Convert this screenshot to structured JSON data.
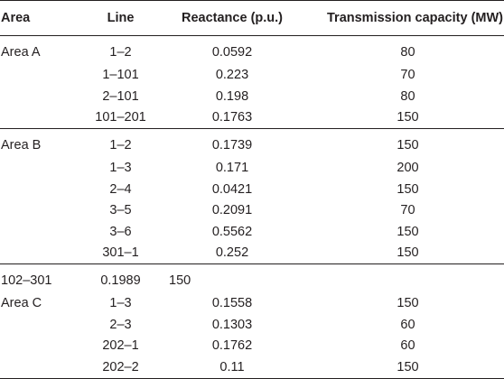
{
  "headers": {
    "area": "Area",
    "line": "Line",
    "reactance": "Reactance (p.u.)",
    "capacity": "Transmission capacity (MW)"
  },
  "rows": [
    {
      "area": "Area A",
      "line": "1–2",
      "reactance": "0.0592",
      "capacity": "80"
    },
    {
      "area": "",
      "line": "1–101",
      "reactance": "0.223",
      "capacity": "70"
    },
    {
      "area": "",
      "line": "2–101",
      "reactance": "0.198",
      "capacity": "80"
    },
    {
      "area": "",
      "line": "101–201",
      "reactance": "0.1763",
      "capacity": "150"
    },
    {
      "area": "Area B",
      "line": "1–2",
      "reactance": "0.1739",
      "capacity": "150"
    },
    {
      "area": "",
      "line": "1–3",
      "reactance": "0.171",
      "capacity": "200"
    },
    {
      "area": "",
      "line": "2–4",
      "reactance": "0.0421",
      "capacity": "150"
    },
    {
      "area": "",
      "line": "3–5",
      "reactance": "0.2091",
      "capacity": "70"
    },
    {
      "area": "",
      "line": "3–6",
      "reactance": "0.5562",
      "capacity": "150"
    },
    {
      "area": "",
      "line": "301–1",
      "reactance": "0.252",
      "capacity": "150"
    },
    {
      "area": "102–301",
      "line": "0.1989",
      "reactance": "150",
      "capacity": ""
    },
    {
      "area": "Area C",
      "line": "1–3",
      "reactance": "0.1558",
      "capacity": "150"
    },
    {
      "area": "",
      "line": "2–3",
      "reactance": "0.1303",
      "capacity": "60"
    },
    {
      "area": "",
      "line": "202–1",
      "reactance": "0.1762",
      "capacity": "60"
    },
    {
      "area": "",
      "line": "202–2",
      "reactance": "0.11",
      "capacity": "150"
    }
  ]
}
